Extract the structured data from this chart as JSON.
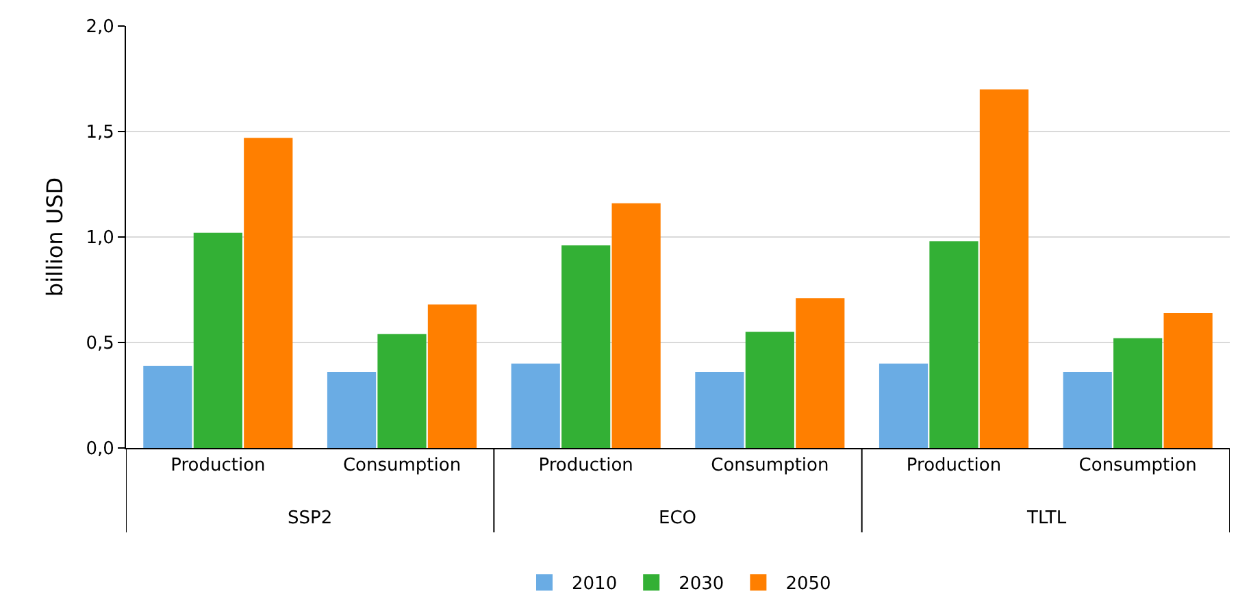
{
  "chart_data": {
    "type": "bar",
    "ylabel": "billion USD",
    "categories": [
      "Production",
      "Consumption",
      "Production",
      "Consumption",
      "Production",
      "Consumption"
    ],
    "annotations": [
      "SSP2",
      "ECO",
      "TLTL"
    ],
    "series": [
      {
        "name": "2010",
        "color": "#6aace4",
        "values": [
          0.39,
          0.36,
          0.4,
          0.36,
          0.4,
          0.36
        ]
      },
      {
        "name": "2030",
        "color": "#33b035",
        "values": [
          1.02,
          0.54,
          0.96,
          0.55,
          0.98,
          0.52
        ]
      },
      {
        "name": "2050",
        "color": "#ff7f00",
        "values": [
          1.47,
          0.68,
          1.16,
          0.71,
          1.7,
          0.64
        ]
      }
    ],
    "ylim": [
      0,
      2
    ],
    "yticks": [
      {
        "value": 0,
        "label": "0,0"
      },
      {
        "value": 0.5,
        "label": "0,5"
      },
      {
        "value": 1,
        "label": "1,0"
      },
      {
        "value": 1.5,
        "label": "1,5"
      },
      {
        "value": 2,
        "label": "2,0"
      }
    ],
    "grid": "y",
    "legend": "bottom"
  }
}
